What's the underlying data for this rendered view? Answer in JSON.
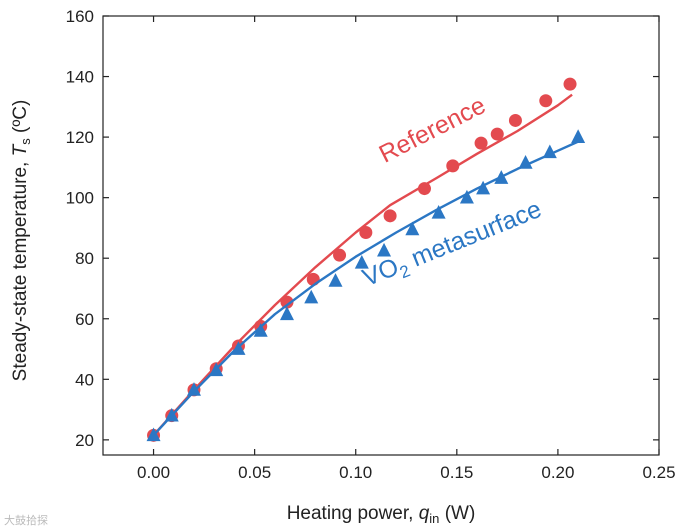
{
  "chart_data": {
    "type": "line",
    "title": "",
    "xlabel": {
      "prefix": "Heating power, ",
      "symbol": "q",
      "subscript": "in",
      "suffix": " (W)"
    },
    "ylabel": {
      "prefix": "Steady-state temperature, ",
      "symbol": "T",
      "subscript": "s",
      "suffix": " (ºC)"
    },
    "xlim": [
      -0.025,
      0.25
    ],
    "ylim": [
      15,
      160
    ],
    "xticks": [
      0.0,
      0.05,
      0.1,
      0.15,
      0.2,
      0.25
    ],
    "xtick_labels": [
      "0.00",
      "0.05",
      "0.10",
      "0.15",
      "0.20",
      "0.25"
    ],
    "yticks": [
      20,
      40,
      60,
      80,
      100,
      120,
      140,
      160
    ],
    "ytick_labels": [
      "20",
      "40",
      "60",
      "80",
      "100",
      "120",
      "140",
      "160"
    ],
    "series": [
      {
        "name": "Reference",
        "label_text": "Reference",
        "color": "#e34a4f",
        "marker": "circle",
        "points": {
          "x": [
            0.0,
            0.009,
            0.02,
            0.031,
            0.042,
            0.053,
            0.066,
            0.079,
            0.092,
            0.105,
            0.117,
            0.134,
            0.148,
            0.162,
            0.17,
            0.179,
            0.194,
            0.206
          ],
          "y": [
            21.5,
            28,
            36.5,
            43.5,
            51,
            57.5,
            65.5,
            73,
            81,
            88.5,
            94,
            103,
            110.5,
            118,
            121,
            125.5,
            132,
            137.5
          ]
        },
        "fit": {
          "x": [
            0.0,
            0.02,
            0.04,
            0.06,
            0.08,
            0.1,
            0.117,
            0.14,
            0.16,
            0.18,
            0.2,
            0.207
          ],
          "y": [
            21.5,
            36.5,
            51,
            64.5,
            77,
            88.5,
            97.5,
            106.5,
            114.5,
            122,
            130.5,
            134
          ]
        }
      },
      {
        "name": "VO2 metasurface",
        "label_main": "VO",
        "label_sub": "2",
        "label_rest": " metasurface",
        "color": "#2b77c4",
        "marker": "triangle",
        "points": {
          "x": [
            0.0,
            0.009,
            0.02,
            0.031,
            0.042,
            0.053,
            0.066,
            0.078,
            0.09,
            0.103,
            0.114,
            0.128,
            0.141,
            0.155,
            0.163,
            0.172,
            0.184,
            0.196,
            0.21
          ],
          "y": [
            21.5,
            28,
            36.5,
            43,
            50,
            56,
            61.5,
            67,
            72.5,
            78.5,
            82.5,
            89.5,
            95,
            100,
            103,
            106.5,
            111.5,
            115,
            120
          ]
        },
        "fit": {
          "x": [
            0.0,
            0.02,
            0.04,
            0.06,
            0.08,
            0.1,
            0.12,
            0.14,
            0.16,
            0.18,
            0.2,
            0.21
          ],
          "y": [
            21.5,
            36,
            49.5,
            61.5,
            71.5,
            80.5,
            88.5,
            96,
            103,
            109.5,
            115.5,
            118.5
          ]
        }
      }
    ]
  },
  "watermark": "大鼓拾探"
}
